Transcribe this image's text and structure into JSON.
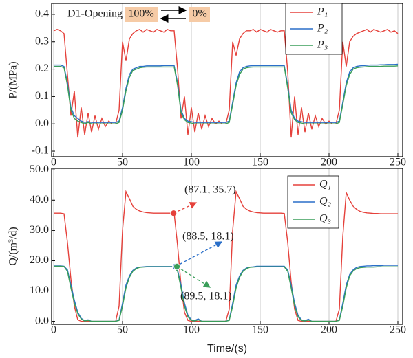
{
  "chart_data": [
    {
      "type": "line",
      "ylabel": "P/(MPa)",
      "x": [
        0,
        2.5,
        5,
        7.5,
        10,
        12.5,
        15,
        17.5,
        20,
        22.5,
        25,
        27.5,
        30,
        32.5,
        35,
        37.5,
        40,
        42.5,
        45,
        47.5,
        50,
        52.5,
        55,
        57.5,
        60,
        62.5,
        65,
        67.5,
        70,
        72.5,
        75,
        77.5,
        80,
        82.5,
        85,
        87.5,
        90,
        92.5,
        95,
        97.5,
        100,
        102.5,
        105,
        107.5,
        110,
        112.5,
        115,
        117.5,
        120,
        122.5,
        125,
        127.5,
        130,
        132.5,
        135,
        137.5,
        140,
        142.5,
        145,
        147.5,
        150,
        152.5,
        155,
        157.5,
        160,
        162.5,
        165,
        167.5,
        170,
        172.5,
        175,
        177.5,
        180,
        182.5,
        185,
        187.5,
        190,
        192.5,
        195,
        197.5,
        200,
        202.5,
        205,
        207.5,
        210,
        212.5,
        215,
        217.5,
        220,
        222.5,
        225,
        227.5,
        230,
        232.5,
        235,
        237.5,
        240,
        242.5,
        245,
        247.5,
        250
      ],
      "series": [
        {
          "name": "P₁",
          "color": "#e5413b",
          "values": [
            0.34,
            0.345,
            0.34,
            0.33,
            0.18,
            0.03,
            0.12,
            -0.05,
            0.06,
            -0.04,
            0.04,
            -0.03,
            0.03,
            -0.02,
            0.02,
            -0.01,
            0.01,
            0.0,
            0.0,
            0.05,
            0.3,
            0.23,
            0.31,
            0.33,
            0.34,
            0.345,
            0.335,
            0.345,
            0.34,
            0.335,
            0.345,
            0.34,
            0.335,
            0.345,
            0.34,
            0.34,
            0.2,
            0.02,
            0.1,
            -0.04,
            0.06,
            -0.03,
            0.04,
            -0.02,
            0.03,
            -0.01,
            0.02,
            0.0,
            0.01,
            0.0,
            0.0,
            0.05,
            0.3,
            0.25,
            0.31,
            0.33,
            0.34,
            0.34,
            0.345,
            0.335,
            0.345,
            0.34,
            0.335,
            0.345,
            0.34,
            0.335,
            0.34,
            0.34,
            0.19,
            -0.05,
            0.1,
            -0.04,
            0.06,
            -0.03,
            0.04,
            -0.02,
            0.03,
            -0.01,
            0.02,
            0.0,
            0.01,
            0.0,
            0.0,
            0.05,
            0.3,
            0.21,
            0.3,
            0.32,
            0.33,
            0.335,
            0.34,
            0.345,
            0.335,
            0.345,
            0.34,
            0.335,
            0.34,
            0.345,
            0.335,
            0.34,
            0.33
          ]
        },
        {
          "name": "P₂",
          "color": "#2a6fc9",
          "values": [
            0.215,
            0.215,
            0.215,
            0.21,
            0.15,
            0.06,
            0.03,
            0.02,
            0.01,
            0.005,
            0.008,
            0.005,
            0.005,
            0.005,
            0.005,
            0.005,
            0.005,
            0.005,
            0.005,
            0.01,
            0.06,
            0.13,
            0.18,
            0.2,
            0.205,
            0.21,
            0.21,
            0.212,
            0.212,
            0.212,
            0.212,
            0.212,
            0.213,
            0.213,
            0.213,
            0.213,
            0.15,
            0.05,
            0.02,
            0.01,
            0.008,
            0.005,
            0.005,
            0.005,
            0.005,
            0.005,
            0.005,
            0.005,
            0.005,
            0.005,
            0.005,
            0.01,
            0.08,
            0.15,
            0.19,
            0.205,
            0.21,
            0.212,
            0.213,
            0.213,
            0.213,
            0.213,
            0.213,
            0.213,
            0.213,
            0.213,
            0.213,
            0.213,
            0.14,
            0.05,
            0.02,
            0.01,
            0.008,
            0.005,
            0.005,
            0.005,
            0.005,
            0.005,
            0.005,
            0.005,
            0.005,
            0.005,
            0.005,
            0.01,
            0.08,
            0.15,
            0.19,
            0.205,
            0.21,
            0.212,
            0.213,
            0.214,
            0.215,
            0.215,
            0.215,
            0.216,
            0.216,
            0.217,
            0.217,
            0.217,
            0.218
          ]
        },
        {
          "name": "P₃",
          "color": "#3a9e5a",
          "values": [
            0.21,
            0.21,
            0.21,
            0.205,
            0.14,
            0.05,
            0.02,
            0.01,
            0.005,
            0.0,
            0.005,
            0.0,
            0.0,
            0.0,
            0.0,
            0.0,
            0.0,
            0.0,
            0.0,
            0.005,
            0.05,
            0.12,
            0.17,
            0.195,
            0.2,
            0.205,
            0.207,
            0.208,
            0.208,
            0.208,
            0.208,
            0.208,
            0.208,
            0.208,
            0.208,
            0.208,
            0.14,
            0.04,
            0.015,
            0.005,
            0.003,
            0.0,
            0.0,
            0.0,
            0.0,
            0.0,
            0.0,
            0.0,
            0.0,
            0.0,
            0.0,
            0.005,
            0.07,
            0.14,
            0.18,
            0.2,
            0.205,
            0.207,
            0.208,
            0.208,
            0.208,
            0.208,
            0.208,
            0.208,
            0.208,
            0.208,
            0.208,
            0.208,
            0.13,
            0.04,
            0.015,
            0.005,
            0.003,
            0.0,
            0.0,
            0.0,
            0.0,
            0.0,
            0.0,
            0.0,
            0.0,
            0.0,
            0.0,
            0.005,
            0.07,
            0.14,
            0.18,
            0.2,
            0.205,
            0.207,
            0.208,
            0.209,
            0.21,
            0.21,
            0.21,
            0.21,
            0.211,
            0.211,
            0.211,
            0.211,
            0.212
          ]
        }
      ],
      "xlim": [
        -1.5,
        253.5
      ],
      "ylim": [
        -0.12,
        0.44
      ],
      "xticks": [
        0,
        50,
        100,
        150,
        200,
        250
      ],
      "yticks": [
        -0.1,
        {
          "value": 0,
          "label": "0.0"
        },
        0.1,
        0.2,
        0.3,
        0.4
      ],
      "grid": "x",
      "legend": "upper right",
      "annotations": [
        "D1-Opening",
        "100%",
        "0%"
      ]
    },
    {
      "type": "line",
      "xlabel": "Time/(s)",
      "ylabel": "Q/(m³/d)",
      "x": [
        0,
        2.5,
        5,
        7.5,
        10,
        12.5,
        15,
        17.5,
        20,
        22.5,
        25,
        27.5,
        30,
        32.5,
        35,
        37.5,
        40,
        42.5,
        45,
        47.5,
        50,
        52.5,
        55,
        57.5,
        60,
        62.5,
        65,
        67.5,
        70,
        72.5,
        75,
        77.5,
        80,
        82.5,
        85,
        87.5,
        90,
        92.5,
        95,
        97.5,
        100,
        102.5,
        105,
        107.5,
        110,
        112.5,
        115,
        117.5,
        120,
        122.5,
        125,
        127.5,
        130,
        132.5,
        135,
        137.5,
        140,
        142.5,
        145,
        147.5,
        150,
        152.5,
        155,
        157.5,
        160,
        162.5,
        165,
        167.5,
        170,
        172.5,
        175,
        177.5,
        180,
        182.5,
        185,
        187.5,
        190,
        192.5,
        195,
        197.5,
        200,
        202.5,
        205,
        207.5,
        210,
        212.5,
        215,
        217.5,
        220,
        222.5,
        225,
        227.5,
        230,
        232.5,
        235,
        237.5,
        240,
        242.5,
        245,
        247.5,
        250
      ],
      "series": [
        {
          "name": "Q₁",
          "color": "#e5413b",
          "values": [
            35.7,
            35.7,
            35.7,
            35.5,
            26,
            14,
            5,
            0.5,
            0,
            0,
            0,
            0,
            0,
            0,
            0,
            0,
            0,
            0,
            0,
            5,
            30,
            42.8,
            40.5,
            38,
            37,
            36.4,
            36.1,
            35.9,
            35.8,
            35.7,
            35.7,
            35.7,
            35.7,
            35.7,
            35.7,
            35.7,
            25,
            12,
            3,
            0.3,
            0,
            0,
            0,
            0,
            0,
            0,
            0,
            0,
            0,
            0,
            0,
            4,
            30,
            42.8,
            40.5,
            38,
            37,
            36.4,
            36.1,
            35.9,
            35.8,
            35.7,
            35.7,
            35.7,
            35.7,
            35.7,
            35.7,
            35.6,
            26,
            13,
            4,
            0.3,
            0,
            0,
            0,
            0,
            0,
            0,
            0,
            0,
            0,
            0,
            0,
            4,
            28,
            42.5,
            40,
            38,
            37,
            36.3,
            36,
            35.8,
            35.7,
            35.6,
            35.6,
            35.5,
            35.5,
            35.5,
            35.5,
            35.5,
            35.5
          ]
        },
        {
          "name": "Q₂",
          "color": "#2a6fc9",
          "values": [
            18.3,
            18.3,
            18.3,
            18.2,
            17,
            12,
            7,
            3,
            1,
            0.2,
            0.5,
            0,
            0,
            0,
            0,
            0,
            0,
            0,
            0,
            0.5,
            6,
            12,
            15,
            16.8,
            17.6,
            17.9,
            18,
            18.1,
            18.1,
            18.1,
            18.1,
            18.1,
            18.1,
            18.1,
            18.1,
            18.1,
            17,
            12,
            6,
            2,
            0.5,
            0.3,
            0.8,
            0,
            0,
            0,
            0,
            0,
            0,
            0,
            0,
            0.5,
            6,
            12,
            15,
            16.8,
            17.6,
            17.9,
            18,
            18.2,
            18.2,
            18.2,
            18.2,
            18.2,
            18.2,
            18.2,
            18.2,
            18.2,
            17,
            12,
            6,
            2,
            0.5,
            0.2,
            0.7,
            0,
            0,
            0,
            0,
            0,
            0,
            0,
            0,
            0.5,
            6,
            12,
            15.5,
            17,
            17.8,
            18.1,
            18.2,
            18.3,
            18.3,
            18.4,
            18.4,
            18.4,
            18.5,
            18.5,
            18.5,
            18.5,
            18.5
          ]
        },
        {
          "name": "Q₃",
          "color": "#3a9e5a",
          "values": [
            18.2,
            18.2,
            18.2,
            18.1,
            16.5,
            11,
            6,
            2.5,
            0.8,
            0.1,
            0.3,
            0,
            0,
            0,
            0,
            0,
            0,
            0,
            0,
            0.3,
            5,
            11,
            14.5,
            16.5,
            17.4,
            17.8,
            17.9,
            18,
            18,
            18,
            18,
            18,
            18,
            18,
            18,
            18,
            16.5,
            11,
            5,
            1.5,
            0.3,
            0.1,
            0.5,
            0,
            0,
            0,
            0,
            0,
            0,
            0,
            0,
            0.3,
            5,
            11,
            14.5,
            16.5,
            17.4,
            17.8,
            17.9,
            18,
            18,
            18,
            18,
            18,
            18,
            18,
            18,
            18,
            16.5,
            11,
            5,
            1.5,
            0.3,
            0.1,
            0.4,
            0,
            0,
            0,
            0,
            0,
            0,
            0,
            0,
            0.3,
            5,
            11,
            15,
            16.6,
            17.4,
            17.7,
            17.8,
            17.9,
            17.9,
            17.9,
            18,
            18,
            18,
            18,
            18,
            18,
            18
          ]
        }
      ],
      "xlim": [
        -1.5,
        253.5
      ],
      "ylim": [
        -1,
        50.5
      ],
      "xticks": [
        0,
        50,
        100,
        150,
        200,
        250
      ],
      "yticks": [
        {
          "value": 0,
          "label": "0.0"
        },
        {
          "value": 10,
          "label": "10.0"
        },
        {
          "value": 20,
          "label": "20.0"
        },
        {
          "value": 30,
          "label": "30.0"
        },
        {
          "value": 40,
          "label": "40.0"
        },
        {
          "value": 50,
          "label": "50.0"
        }
      ],
      "grid": "x",
      "legend": "upper right",
      "annotations": [
        {
          "text": "(87.1, 35.7)",
          "x": 87.1,
          "y": 35.7,
          "color": "#e5413b"
        },
        {
          "text": "(88.5, 18.1)",
          "x": 88.5,
          "y": 18.1,
          "color": "#2a6fc9"
        },
        {
          "text": "(89.5, 18.1)",
          "x": 89.5,
          "y": 18.1,
          "color": "#3a9e5a"
        }
      ]
    }
  ]
}
